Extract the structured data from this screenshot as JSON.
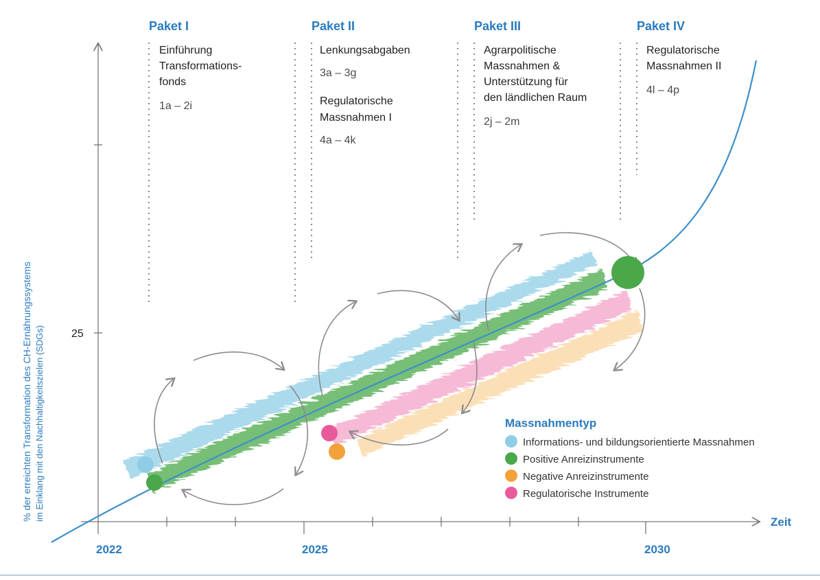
{
  "colors": {
    "accent": "#2a7bbf",
    "info": "#8fcde6",
    "positive": "#4aa84a",
    "negative": "#f2a23a",
    "regulatory": "#e85a9b",
    "curve": "#3f8fc9"
  },
  "packages": [
    {
      "title": "Paket I",
      "lines": [
        "Einführung",
        "Transformations-",
        "fonds"
      ],
      "code": "1a – 2i",
      "lines2": [],
      "code2": ""
    },
    {
      "title": "Paket II",
      "lines": [
        "Lenkungsabgaben"
      ],
      "code": "3a – 3g",
      "lines2": [
        "Regulatorische",
        "Massnahmen I"
      ],
      "code2": "4a – 4k"
    },
    {
      "title": "Paket III",
      "lines": [
        "Agrarpolitische",
        "Massnahmen &",
        "Unterstützung für",
        "den ländlichen Raum"
      ],
      "code": "2j – 2m",
      "lines2": [],
      "code2": ""
    },
    {
      "title": "Paket IV",
      "lines": [
        "Regulatorische",
        "Massnahmen II"
      ],
      "code": "4l – 4p",
      "lines2": [],
      "code2": ""
    }
  ],
  "axes": {
    "x_label": "Zeit",
    "x_years": [
      "2022",
      "2025",
      "2030"
    ],
    "y_tick": "25",
    "y_label_line1": "% der erreichten Transformation des CH-Ernährungssystems",
    "y_label_line2": "im Einklang mit den Nachhaltigkeitszielen (SDGs)"
  },
  "legend": {
    "title": "Massnahmentyp",
    "items": [
      {
        "label": "Informations- und bildungsorientierte Massnahmen",
        "color": "#8fcde6"
      },
      {
        "label": "Positive Anreizinstrumente",
        "color": "#4aa84a"
      },
      {
        "label": "Negative Anreizinstrumente",
        "color": "#f2a23a"
      },
      {
        "label": "Regulatorische Instrumente",
        "color": "#e85a9b"
      }
    ]
  }
}
